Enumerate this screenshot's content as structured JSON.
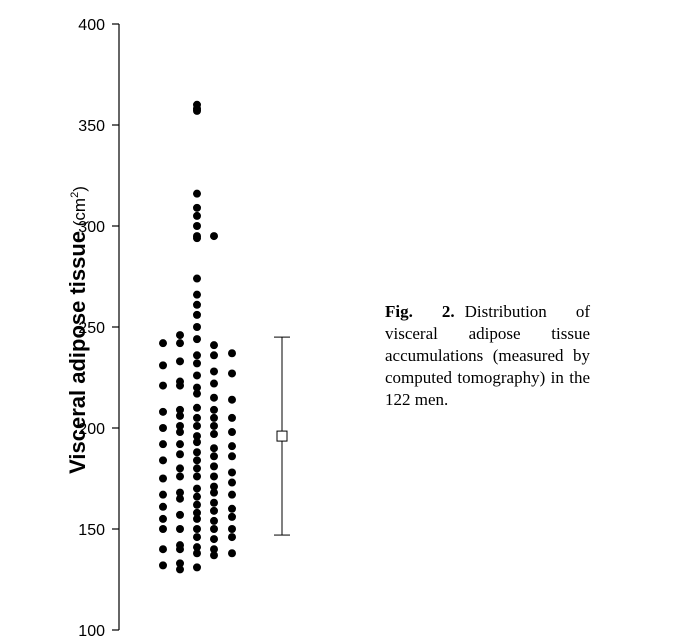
{
  "caption": {
    "label": "Fig. 2.",
    "text": "Distribution of visceral ad­ipose tissue accumulations (mea­sured by computed tomography) in the 122 men."
  },
  "chart_data": {
    "type": "scatter",
    "title": "",
    "xlabel": "",
    "ylabel": {
      "main": "Visceral adipose tissue",
      "unit_open": " (cm",
      "unit_sup": "2",
      "unit_close": ")"
    },
    "ylim": [
      100,
      400
    ],
    "yticks": [
      100,
      150,
      200,
      250,
      300,
      350,
      400
    ],
    "grid": false,
    "legend": "none",
    "marker_color": "#000000",
    "columns": [
      {
        "name": "col1",
        "values": [
          242,
          231,
          221,
          208,
          200,
          192,
          184,
          175,
          167,
          161,
          155,
          150,
          140,
          132
        ]
      },
      {
        "name": "col2",
        "values": [
          246,
          242,
          233,
          223,
          221,
          209,
          206,
          201,
          198,
          192,
          187,
          180,
          176,
          168,
          165,
          157,
          150,
          142,
          140,
          133,
          130
        ]
      },
      {
        "name": "col3",
        "values": [
          360,
          358,
          357,
          316,
          309,
          305,
          300,
          295,
          294,
          274,
          266,
          261,
          256,
          250,
          244,
          236,
          232,
          226,
          220,
          217,
          210,
          205,
          201,
          196,
          193,
          188,
          184,
          180,
          176,
          170,
          166,
          162,
          158,
          155,
          150,
          146,
          141,
          138,
          131
        ]
      },
      {
        "name": "col4",
        "values": [
          295,
          241,
          236,
          228,
          222,
          215,
          209,
          205,
          201,
          197,
          190,
          186,
          181,
          176,
          171,
          168,
          163,
          159,
          154,
          150,
          145,
          140,
          137
        ]
      },
      {
        "name": "col5",
        "values": [
          237,
          227,
          214,
          205,
          198,
          191,
          186,
          178,
          173,
          167,
          160,
          156,
          150,
          146,
          138
        ]
      }
    ],
    "summary": {
      "mean": 196,
      "lower": 147,
      "upper": 245
    }
  }
}
